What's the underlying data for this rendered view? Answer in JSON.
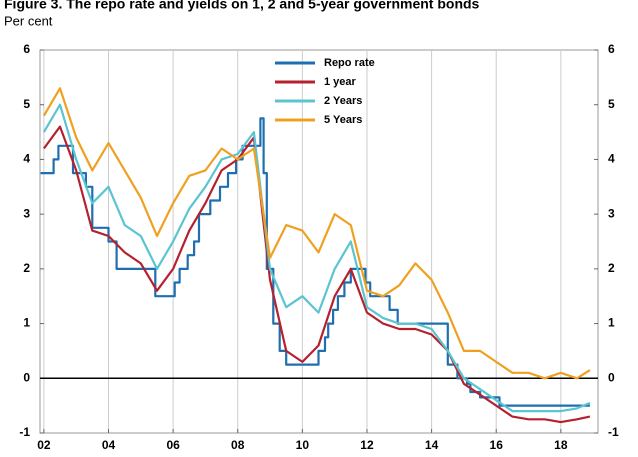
{
  "chart_data": {
    "type": "line",
    "title": "Figure 3. The repo rate and yields on 1, 2 and 5-year government bonds",
    "subtitle": "Per cent",
    "x": [
      2002.0,
      2002.5,
      2003.0,
      2003.5,
      2004.0,
      2004.5,
      2005.0,
      2005.5,
      2006.0,
      2006.5,
      2007.0,
      2007.5,
      2008.0,
      2008.5,
      2009.0,
      2009.5,
      2010.0,
      2010.5,
      2011.0,
      2011.5,
      2012.0,
      2012.5,
      2013.0,
      2013.5,
      2014.0,
      2014.5,
      2015.0,
      2015.5,
      2016.0,
      2016.5,
      2017.0,
      2017.5,
      2018.0,
      2018.5,
      2018.9
    ],
    "series": [
      {
        "name": "Repo rate",
        "color": "#1f6fb0",
        "x": [
          2001.9,
          2002.3,
          2002.3,
          2002.45,
          2002.45,
          2002.9,
          2002.9,
          2003.3,
          2003.3,
          2003.5,
          2003.5,
          2004.0,
          2004.0,
          2004.25,
          2004.25,
          2005.45,
          2005.45,
          2006.05,
          2006.05,
          2006.2,
          2006.2,
          2006.45,
          2006.45,
          2006.65,
          2006.65,
          2006.8,
          2006.8,
          2007.15,
          2007.15,
          2007.45,
          2007.45,
          2007.7,
          2007.7,
          2007.95,
          2007.95,
          2008.15,
          2008.15,
          2008.7,
          2008.7,
          2008.8,
          2008.8,
          2008.9,
          2008.9,
          2009.1,
          2009.1,
          2009.3,
          2009.3,
          2009.5,
          2009.5,
          2010.5,
          2010.5,
          2010.7,
          2010.7,
          2010.8,
          2010.8,
          2010.95,
          2010.95,
          2011.1,
          2011.1,
          2011.3,
          2011.3,
          2011.5,
          2011.5,
          2011.95,
          2011.95,
          2012.1,
          2012.1,
          2012.7,
          2012.7,
          2012.95,
          2012.95,
          2014.5,
          2014.5,
          2014.8,
          2014.8,
          2015.1,
          2015.1,
          2015.2,
          2015.2,
          2015.5,
          2015.5,
          2016.1,
          2016.1,
          2018.9
        ],
        "values": [
          3.75,
          3.75,
          4.0,
          4.0,
          4.25,
          4.25,
          3.75,
          3.75,
          3.5,
          3.5,
          2.75,
          2.75,
          2.5,
          2.5,
          2.0,
          2.0,
          1.5,
          1.5,
          1.75,
          1.75,
          2.0,
          2.0,
          2.25,
          2.25,
          2.5,
          2.5,
          3.0,
          3.0,
          3.25,
          3.25,
          3.5,
          3.5,
          3.75,
          3.75,
          4.0,
          4.0,
          4.25,
          4.25,
          4.75,
          4.75,
          3.75,
          3.75,
          2.0,
          2.0,
          1.0,
          1.0,
          0.5,
          0.5,
          0.25,
          0.25,
          0.5,
          0.5,
          0.75,
          0.75,
          1.0,
          1.0,
          1.25,
          1.25,
          1.5,
          1.5,
          1.75,
          1.75,
          2.0,
          2.0,
          1.75,
          1.75,
          1.5,
          1.5,
          1.25,
          1.25,
          1.0,
          1.0,
          0.25,
          0.25,
          0.0,
          0.0,
          -0.1,
          -0.1,
          -0.25,
          -0.25,
          -0.35,
          -0.35,
          -0.5,
          -0.5
        ]
      },
      {
        "name": "1 year",
        "color": "#b5202e",
        "values": [
          4.2,
          4.6,
          3.8,
          2.7,
          2.6,
          2.3,
          2.1,
          1.6,
          2.0,
          2.7,
          3.2,
          3.8,
          4.0,
          4.4,
          1.8,
          0.5,
          0.3,
          0.6,
          1.5,
          2.0,
          1.2,
          1.0,
          0.9,
          0.9,
          0.8,
          0.5,
          -0.1,
          -0.3,
          -0.5,
          -0.7,
          -0.75,
          -0.75,
          -0.8,
          -0.75,
          -0.7
        ]
      },
      {
        "name": "2 Years",
        "color": "#5bc4d1",
        "values": [
          4.5,
          5.0,
          4.0,
          3.2,
          3.5,
          2.8,
          2.6,
          2.0,
          2.5,
          3.1,
          3.5,
          4.0,
          4.1,
          4.5,
          2.0,
          1.3,
          1.5,
          1.2,
          2.0,
          2.5,
          1.3,
          1.1,
          1.0,
          1.0,
          0.9,
          0.5,
          0.0,
          -0.2,
          -0.4,
          -0.6,
          -0.6,
          -0.6,
          -0.6,
          -0.55,
          -0.45
        ]
      },
      {
        "name": "5 Years",
        "color": "#f0a020",
        "values": [
          4.8,
          5.3,
          4.4,
          3.8,
          4.3,
          3.8,
          3.3,
          2.6,
          3.2,
          3.7,
          3.8,
          4.2,
          4.0,
          4.2,
          2.2,
          2.8,
          2.7,
          2.3,
          3.0,
          2.8,
          1.6,
          1.5,
          1.7,
          2.1,
          1.8,
          1.2,
          0.5,
          0.5,
          0.3,
          0.1,
          0.1,
          0.0,
          0.1,
          0.0,
          0.15
        ]
      }
    ],
    "xlim": [
      2001.88,
      2019.15
    ],
    "xticks": [
      {
        "value": 2002,
        "label": "02"
      },
      {
        "value": 2004,
        "label": "04"
      },
      {
        "value": 2006,
        "label": "06"
      },
      {
        "value": 2008,
        "label": "08"
      },
      {
        "value": 2010,
        "label": "10"
      },
      {
        "value": 2012,
        "label": "12"
      },
      {
        "value": 2014,
        "label": "14"
      },
      {
        "value": 2016,
        "label": "16"
      },
      {
        "value": 2018,
        "label": "18"
      }
    ],
    "ylim": [
      -1,
      6
    ],
    "yticks": [
      -1,
      0,
      1,
      2,
      3,
      4,
      5,
      6
    ],
    "y2lim": [
      -1,
      6
    ],
    "y2ticks": [
      -1,
      0,
      1,
      2,
      3,
      4,
      5,
      6
    ],
    "grid": true,
    "legend": "top"
  }
}
